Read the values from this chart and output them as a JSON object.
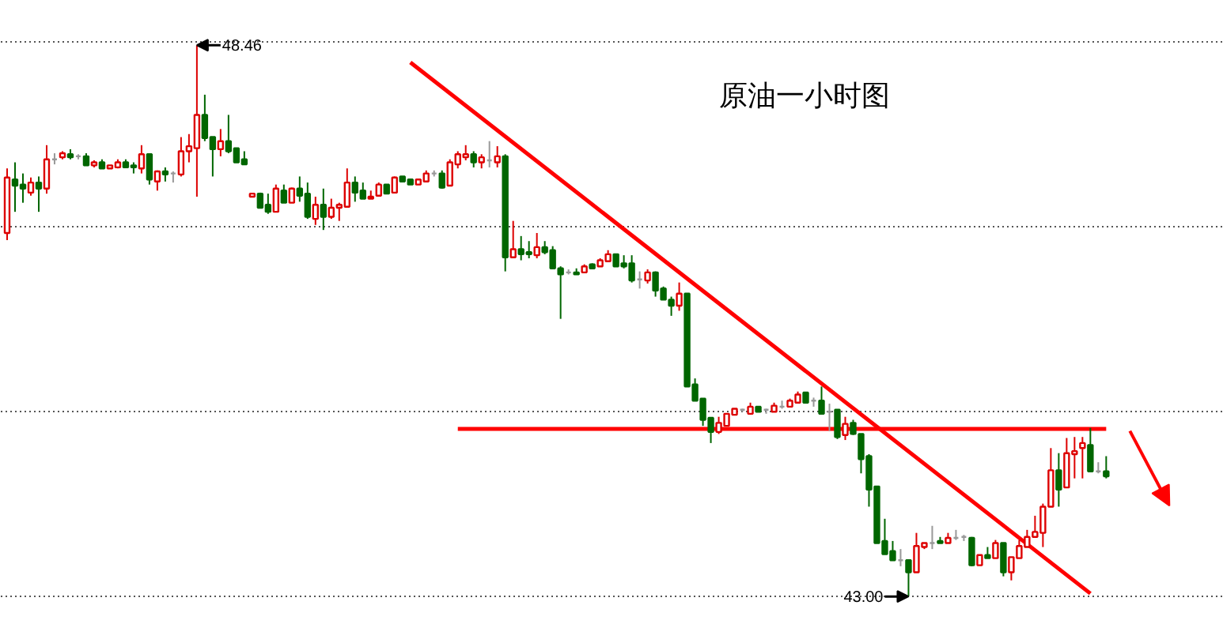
{
  "chart_data": {
    "type": "candlestick",
    "title": "原油一小时图",
    "categories": [
      null,
      null,
      null,
      null,
      null,
      null,
      null,
      null,
      null,
      null,
      null,
      null,
      null,
      null,
      null,
      null,
      null,
      null,
      null,
      null,
      null,
      null,
      null,
      null,
      null,
      null,
      null,
      null,
      null,
      null,
      null,
      null,
      null,
      null,
      null,
      null,
      null,
      null,
      null,
      null,
      null,
      null,
      null,
      null,
      null,
      null,
      null,
      null,
      null,
      null,
      null,
      null,
      null,
      null,
      null,
      null,
      null,
      null,
      null,
      null,
      null,
      null,
      null,
      null,
      null,
      null,
      null,
      null,
      null,
      null,
      null,
      null,
      null,
      null,
      null,
      null,
      null,
      null,
      null,
      null,
      null,
      null,
      null,
      null,
      null,
      null,
      null,
      null,
      null,
      null,
      null,
      null,
      null,
      null,
      null,
      null,
      null,
      null,
      null,
      null,
      null,
      null,
      null,
      null,
      null,
      null,
      null,
      null,
      null,
      null,
      null,
      null,
      null,
      null,
      null,
      null,
      null,
      null,
      null,
      null,
      null,
      null,
      null,
      null,
      null,
      null,
      null,
      null,
      null,
      null,
      null,
      null,
      null,
      null,
      null,
      null,
      null,
      null,
      null,
      null
    ],
    "ohlc": [
      [
        46.6,
        47.24,
        46.53,
        47.15
      ],
      [
        47.13,
        47.3,
        46.81,
        47.07
      ],
      [
        47.08,
        47.19,
        46.9,
        47.04
      ],
      [
        47.0,
        47.15,
        46.97,
        47.1
      ],
      [
        47.1,
        47.16,
        46.81,
        47.04
      ],
      [
        47.04,
        47.47,
        46.99,
        47.33
      ],
      [
        47.33,
        47.39,
        47.28,
        47.33
      ],
      [
        47.35,
        47.41,
        47.33,
        47.39
      ],
      [
        47.38,
        47.43,
        47.33,
        47.35
      ],
      [
        47.36,
        47.38,
        47.33,
        47.36
      ],
      [
        47.36,
        47.39,
        47.27,
        47.27
      ],
      [
        47.27,
        47.32,
        47.25,
        47.3
      ],
      [
        47.3,
        47.33,
        47.24,
        47.24
      ],
      [
        47.24,
        47.27,
        47.24,
        47.27
      ],
      [
        47.25,
        47.33,
        47.24,
        47.3
      ],
      [
        47.3,
        47.33,
        47.25,
        47.25
      ],
      [
        47.27,
        47.3,
        47.19,
        47.25
      ],
      [
        47.24,
        47.47,
        47.19,
        47.38
      ],
      [
        47.38,
        47.38,
        47.08,
        47.13
      ],
      [
        47.11,
        47.22,
        47.02,
        47.21
      ],
      [
        47.21,
        47.25,
        47.11,
        47.18
      ],
      [
        47.19,
        47.21,
        47.1,
        47.19
      ],
      [
        47.18,
        47.55,
        47.16,
        47.41
      ],
      [
        47.41,
        47.58,
        47.3,
        47.46
      ],
      [
        47.44,
        48.46,
        46.96,
        47.77
      ],
      [
        47.77,
        47.97,
        47.51,
        47.54
      ],
      [
        47.55,
        47.55,
        47.16,
        47.43
      ],
      [
        47.43,
        47.63,
        47.36,
        47.51
      ],
      [
        47.51,
        47.77,
        47.39,
        47.41
      ],
      [
        47.44,
        47.44,
        47.3,
        47.3
      ],
      [
        47.33,
        47.41,
        47.28,
        47.28
      ],
      [
        46.96,
        46.99,
        46.96,
        46.99
      ],
      [
        46.99,
        47.0,
        46.85,
        46.85
      ],
      [
        46.88,
        46.99,
        46.79,
        46.81
      ],
      [
        46.81,
        47.08,
        46.81,
        47.04
      ],
      [
        47.02,
        47.08,
        46.9,
        46.9
      ],
      [
        46.9,
        47.05,
        46.9,
        47.04
      ],
      [
        47.04,
        47.16,
        46.91,
        46.97
      ],
      [
        46.99,
        47.1,
        46.74,
        46.76
      ],
      [
        46.74,
        46.96,
        46.68,
        46.88
      ],
      [
        46.88,
        47.04,
        46.63,
        46.76
      ],
      [
        46.76,
        46.94,
        46.74,
        46.85
      ],
      [
        46.85,
        46.9,
        46.72,
        46.88
      ],
      [
        46.86,
        47.24,
        46.86,
        47.1
      ],
      [
        47.1,
        47.16,
        46.91,
        47.0
      ],
      [
        47.02,
        47.1,
        46.94,
        46.94
      ],
      [
        46.94,
        47.02,
        46.94,
        46.96
      ],
      [
        46.97,
        47.1,
        46.96,
        47.08
      ],
      [
        47.08,
        47.08,
        46.99,
        46.99
      ],
      [
        47.0,
        47.16,
        47.0,
        47.15
      ],
      [
        47.16,
        47.16,
        47.11,
        47.11
      ],
      [
        47.13,
        47.13,
        47.08,
        47.08
      ],
      [
        47.08,
        47.13,
        47.08,
        47.13
      ],
      [
        47.11,
        47.22,
        47.11,
        47.19
      ],
      [
        47.19,
        47.22,
        47.16,
        47.19
      ],
      [
        47.19,
        47.22,
        47.04,
        47.05
      ],
      [
        47.07,
        47.33,
        47.07,
        47.3
      ],
      [
        47.28,
        47.41,
        47.24,
        47.38
      ],
      [
        47.35,
        47.47,
        47.32,
        47.38
      ],
      [
        47.38,
        47.41,
        47.25,
        47.3
      ],
      [
        47.3,
        47.38,
        47.24,
        47.35
      ],
      [
        47.32,
        47.51,
        47.25,
        47.32
      ],
      [
        47.3,
        47.46,
        47.25,
        47.36
      ],
      [
        47.36,
        47.38,
        46.22,
        46.36
      ],
      [
        46.36,
        46.72,
        46.35,
        46.44
      ],
      [
        46.44,
        46.57,
        46.33,
        46.39
      ],
      [
        46.41,
        46.52,
        46.35,
        46.39
      ],
      [
        46.38,
        46.6,
        46.35,
        46.46
      ],
      [
        46.46,
        46.52,
        46.39,
        46.41
      ],
      [
        46.43,
        46.47,
        46.25,
        46.25
      ],
      [
        46.25,
        46.27,
        45.75,
        46.19
      ],
      [
        46.21,
        46.24,
        46.19,
        46.21
      ],
      [
        46.21,
        46.25,
        46.19,
        46.19
      ],
      [
        46.21,
        46.29,
        46.21,
        46.27
      ],
      [
        46.29,
        46.3,
        46.25,
        46.25
      ],
      [
        46.27,
        46.35,
        46.27,
        46.33
      ],
      [
        46.32,
        46.43,
        46.32,
        46.39
      ],
      [
        46.39,
        46.39,
        46.27,
        46.27
      ],
      [
        46.3,
        46.38,
        46.25,
        46.27
      ],
      [
        46.3,
        46.38,
        46.11,
        46.13
      ],
      [
        46.14,
        46.22,
        46.05,
        46.14
      ],
      [
        46.13,
        46.24,
        46.1,
        46.21
      ],
      [
        46.21,
        46.22,
        45.97,
        46.03
      ],
      [
        46.05,
        46.07,
        45.94,
        45.94
      ],
      [
        45.94,
        45.97,
        45.78,
        45.88
      ],
      [
        45.88,
        46.11,
        45.83,
        46.0
      ],
      [
        46.0,
        46.0,
        45.08,
        45.08
      ],
      [
        45.1,
        45.16,
        44.94,
        44.94
      ],
      [
        44.96,
        44.96,
        44.69,
        44.75
      ],
      [
        44.77,
        44.77,
        44.52,
        44.63
      ],
      [
        44.63,
        44.78,
        44.61,
        44.72
      ],
      [
        44.69,
        44.81,
        44.69,
        44.81
      ],
      [
        44.8,
        44.86,
        44.8,
        44.86
      ],
      [
        44.85,
        44.86,
        44.83,
        44.85
      ],
      [
        44.81,
        44.92,
        44.8,
        44.88
      ],
      [
        44.88,
        44.88,
        44.83,
        44.83
      ],
      [
        44.85,
        44.86,
        44.81,
        44.85
      ],
      [
        44.83,
        44.92,
        44.83,
        44.89
      ],
      [
        44.88,
        44.94,
        44.86,
        44.88
      ],
      [
        44.88,
        44.96,
        44.88,
        44.94
      ],
      [
        44.92,
        45.03,
        44.92,
        45.0
      ],
      [
        45.02,
        45.02,
        44.92,
        44.92
      ],
      [
        44.94,
        44.97,
        44.88,
        44.94
      ],
      [
        44.94,
        45.08,
        44.81,
        44.81
      ],
      [
        44.83,
        44.91,
        44.64,
        44.83
      ],
      [
        44.85,
        44.85,
        44.56,
        44.58
      ],
      [
        44.6,
        44.78,
        44.55,
        44.71
      ],
      [
        44.72,
        44.75,
        44.6,
        44.61
      ],
      [
        44.61,
        44.61,
        44.22,
        44.36
      ],
      [
        44.39,
        44.41,
        43.89,
        44.06
      ],
      [
        44.09,
        44.09,
        43.53,
        43.53
      ],
      [
        43.55,
        43.77,
        43.42,
        43.42
      ],
      [
        43.45,
        43.55,
        43.36,
        43.36
      ],
      [
        43.36,
        43.47,
        43.3,
        43.36
      ],
      [
        43.36,
        43.36,
        43.0,
        43.24
      ],
      [
        43.24,
        43.63,
        43.24,
        43.5
      ],
      [
        43.49,
        43.53,
        43.47,
        43.53
      ],
      [
        43.53,
        43.7,
        43.47,
        43.53
      ],
      [
        43.55,
        43.59,
        43.53,
        43.53
      ],
      [
        43.53,
        43.63,
        43.53,
        43.58
      ],
      [
        43.58,
        43.66,
        43.56,
        43.58
      ],
      [
        43.59,
        43.61,
        43.55,
        43.59
      ],
      [
        43.58,
        43.59,
        43.3,
        43.31
      ],
      [
        43.31,
        43.41,
        43.31,
        43.41
      ],
      [
        43.41,
        43.49,
        43.38,
        43.38
      ],
      [
        43.38,
        43.56,
        43.38,
        43.53
      ],
      [
        43.53,
        43.53,
        43.2,
        43.24
      ],
      [
        43.24,
        43.39,
        43.16,
        43.39
      ],
      [
        43.38,
        43.56,
        43.38,
        43.5
      ],
      [
        43.49,
        43.66,
        43.49,
        43.59
      ],
      [
        43.59,
        43.8,
        43.59,
        43.64
      ],
      [
        43.63,
        43.92,
        43.49,
        43.89
      ],
      [
        43.89,
        44.47,
        43.89,
        44.25
      ],
      [
        44.25,
        44.42,
        43.89,
        44.06
      ],
      [
        44.08,
        44.57,
        44.08,
        44.42
      ],
      [
        44.41,
        44.58,
        44.17,
        44.44
      ],
      [
        44.47,
        44.58,
        44.17,
        44.52
      ],
      [
        44.5,
        44.67,
        44.24,
        44.24
      ],
      [
        44.24,
        44.33,
        44.22,
        44.24
      ],
      [
        44.24,
        44.39,
        44.17,
        44.19
      ]
    ],
    "series": [
      {
        "type": "line",
        "color": "#ff0000",
        "values": [
          null,
          null,
          null,
          null,
          null,
          null,
          null,
          null,
          null,
          null,
          null,
          null,
          null,
          null,
          null,
          null,
          null,
          null,
          null,
          null,
          null,
          null,
          null,
          null,
          null,
          null,
          null,
          null,
          null,
          null,
          null,
          null,
          null,
          null,
          null,
          null,
          null,
          null,
          null,
          null,
          null,
          null,
          null,
          null,
          null,
          null,
          null,
          null,
          null,
          null,
          null,
          48.29,
          null,
          null,
          null,
          null,
          null,
          null,
          null,
          null,
          null,
          null,
          null,
          null,
          null,
          null,
          null,
          null,
          null,
          null,
          null,
          null,
          null,
          null,
          null,
          null,
          null,
          null,
          null,
          null,
          null,
          null,
          null,
          null,
          null,
          null,
          null,
          null,
          null,
          null,
          null,
          null,
          null,
          null,
          null,
          null,
          null,
          null,
          null,
          null,
          null,
          null,
          null,
          null,
          null,
          null,
          null,
          null,
          null,
          null,
          null,
          null,
          null,
          null,
          null,
          null,
          null,
          null,
          null,
          null,
          null,
          null,
          null,
          null,
          null,
          null,
          null,
          null,
          null,
          null,
          null,
          null,
          null,
          null,
          null,
          null,
          null,
          43.03,
          null,
          null
        ]
      },
      {
        "type": "line",
        "color": "#ff0000",
        "values": [
          null,
          null,
          null,
          null,
          null,
          null,
          null,
          null,
          null,
          null,
          null,
          null,
          null,
          null,
          null,
          null,
          null,
          null,
          null,
          null,
          null,
          null,
          null,
          null,
          null,
          null,
          null,
          null,
          null,
          null,
          null,
          null,
          null,
          null,
          null,
          null,
          null,
          null,
          null,
          null,
          null,
          null,
          null,
          null,
          null,
          null,
          null,
          null,
          null,
          null,
          null,
          null,
          null,
          null,
          null,
          null,
          null,
          44.66,
          null,
          null,
          null,
          null,
          null,
          null,
          null,
          null,
          null,
          null,
          null,
          null,
          null,
          null,
          null,
          null,
          null,
          null,
          null,
          null,
          null,
          null,
          null,
          null,
          null,
          null,
          null,
          null,
          null,
          null,
          null,
          null,
          null,
          null,
          null,
          null,
          null,
          null,
          null,
          null,
          null,
          null,
          null,
          null,
          null,
          null,
          null,
          null,
          null,
          null,
          null,
          null,
          null,
          null,
          null,
          null,
          null,
          null,
          null,
          null,
          null,
          null,
          null,
          null,
          null,
          null,
          null,
          null,
          null,
          null,
          null,
          null,
          null,
          null,
          null,
          null,
          null,
          null,
          null,
          null,
          null,
          44.66
        ]
      }
    ],
    "ylim": [
      42.72,
      48.9
    ],
    "yticks": [
      {
        "value": 48.49,
        "label": null
      },
      {
        "value": 46.66,
        "label": null
      },
      {
        "value": 44.83,
        "label": null
      },
      {
        "value": 43.0,
        "label": null
      }
    ],
    "grid": "y",
    "tick_labels": false,
    "annotations": [
      "48.46",
      "43.00"
    ]
  }
}
